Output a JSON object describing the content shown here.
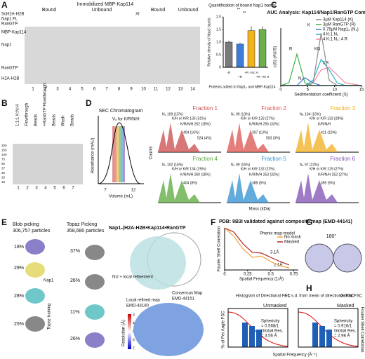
{
  "panels": {
    "A": {
      "label": "A",
      "title": "Immobilized MBP-Kap114",
      "groups": [
        "Bound",
        "Unbound",
        "Bound",
        "Unbound"
      ],
      "rows": [
        "ScH2A-H2B",
        "Nap1 FL",
        "RanGTP"
      ],
      "xi": "XI",
      "markers": [
        "MBP-Kap114",
        "Nap1",
        "RanGTP",
        "H2A-H2B"
      ],
      "lanes": [
        "1",
        "2",
        "3",
        "4",
        "5",
        "6",
        "7",
        "8",
        "9",
        "10",
        "11",
        "12",
        "13",
        "14"
      ],
      "chart": {
        "type": "bar",
        "title": "Quantification of bound Nap1 bands",
        "ylabel": "Relative density of Nap1 bands",
        "xlabel": "Proteins added to Nap1₂ and MBP-Kap114",
        "categories": [
          "-R",
          "+R",
          "+R +Sc H",
          "+R +XI H"
        ],
        "values": [
          1.0,
          0.92,
          1.45,
          1.5
        ],
        "errors": [
          0.06,
          0.06,
          0.18,
          0.12
        ],
        "colors": [
          "#7a7a7a",
          "#3b7dd8",
          "#f2b41e",
          "#6ab04c"
        ],
        "ylim": [
          0,
          2
        ],
        "yticks": [
          0,
          0.5,
          {
            "value": 1,
            "label": "1.0"
          },
          1.5,
          {
            "value": 2,
            "label": "2.0"
          }
        ],
        "significance": [
          "**",
          "**"
        ]
      }
    },
    "B": {
      "label": "B",
      "ratio": "1:1:1 K:N:H",
      "lanes_top": [
        "Flowthrough",
        "Beads",
        "+RanGTP Flowthrough",
        "Beads",
        "Wash",
        "Beads"
      ],
      "lanes": [
        "1",
        "2",
        "3",
        "4",
        "5",
        "6",
        "7"
      ],
      "markers": [
        "250",
        "150",
        "100",
        "75",
        "50",
        "37",
        "25",
        "20",
        "15"
      ]
    },
    "C": {
      "label": "C",
      "chart": {
        "type": "line",
        "title": "AUC Analysis: Kap114/Nap1/RanGTP Complex",
        "xlabel": "Sedimentation coefficient (S)",
        "ylabel": "c(S) (AU/S)",
        "x": [
          0,
          1.5,
          3,
          4.5,
          6,
          7.5,
          9,
          10.5,
          12,
          15
        ],
        "xlim": [
          0,
          15
        ],
        "ylim": [
          0,
          1.1
        ],
        "xticks": [
          0,
          5,
          10,
          15
        ],
        "series": [
          {
            "name": "3µM Kap114 (K)",
            "color": "#8c8c8c",
            "values": [
              0,
              0,
              0,
              0,
              0.05,
              1.0,
              0.1,
              0,
              0,
              0
            ]
          },
          {
            "name": "3µM RanGTP (R)",
            "color": "#3fae49",
            "values": [
              0,
              0.05,
              0.6,
              0.05,
              0,
              0,
              0,
              0,
              0,
              0
            ]
          },
          {
            "name": "0.75µM Nap1₂ (N₂)",
            "color": "#3d7fd6",
            "values": [
              0,
              0,
              0,
              0.15,
              0.05,
              0,
              0,
              0,
              0,
              0
            ]
          },
          {
            "name": "4 K:1 N₂",
            "color": "#2ab6c7",
            "values": [
              0,
              0,
              0,
              0,
              0.1,
              0.5,
              0.3,
              0.05,
              0,
              0
            ]
          },
          {
            "name": "4 K:1 N₂: 4 R",
            "color": "#f28b9c",
            "values": [
              0,
              0,
              0,
              0,
              0.05,
              0.3,
              0.35,
              0.2,
              0.05,
              0
            ]
          }
        ],
        "annotations": [
          "K",
          "R",
          "N₂",
          "KN",
          "KR"
        ]
      }
    },
    "D": {
      "label": "D",
      "sec_title": "SEC Chromatogram",
      "sec_note": "Vₒ for K/R/N/H",
      "sec_ylabel": "Absorbance (mAU)",
      "sec_xlabel": "Volume (mL)",
      "sec_xticks": [
        "7",
        "12"
      ],
      "fractions": [
        {
          "name": "Fraction 1",
          "color": "#c94a4a",
          "peaks": [
            "N₂ 109 (15%)",
            "K/H or K/R 135 (31%)",
            "K/R/N/H 262 (28%)",
            "404 (16%)",
            "524 (4%)"
          ]
        },
        {
          "name": "Fraction 2",
          "color": "#d9534f",
          "peaks": [
            "N₂ 99 (13%)",
            "K/H or K/R 132 (27%)",
            "K/R/N/H 256 (33%)",
            "397 (13%)",
            "503 (3%)"
          ]
        },
        {
          "name": "Fraction 3",
          "color": "#f0ad1e",
          "peaks": [
            "N₂ 104 (16%)",
            "K/H or K/R 133 (28%)",
            "K/R/N/H",
            "411 (10%)"
          ]
        },
        {
          "name": "Fraction 4",
          "color": "#5aa83c",
          "peaks": [
            "N₂ 102 (16%)",
            "K/H or K/R 134 (25%)",
            "K/R/N/H 260 (28%)",
            "404 (8%)"
          ]
        },
        {
          "name": "Fraction 5",
          "color": "#2f8fd0",
          "peaks": [
            "N₂ 99 (16%)",
            "K/H or K/R 132 (22%)",
            "K/R/N/H 253 (32%)",
            "388 (5%)"
          ]
        },
        {
          "name": "Fraction 6",
          "color": "#7e4fb0",
          "peaks": [
            "N₂ 97 (22%)",
            "K/H or K/R 129 (27%)",
            "K/R/N/H 252 (27%)",
            "395 (5%)"
          ]
        }
      ],
      "ylabel": "Counts",
      "xlabel": "Mass (kDa)"
    },
    "E": {
      "label": "E",
      "blob": "Blob picking",
      "blob_count": "306,757 particles",
      "topaz": "Topaz Picking",
      "topaz_count": "358,680 particles",
      "topaz_training": "Topaz training",
      "refine": "NU + local refinement",
      "left_pcts": [
        "18%",
        "29%",
        "28%",
        "25%"
      ],
      "right_pcts": [
        "37%",
        "26%",
        "11%",
        "26%"
      ],
      "nap1": "Nap1",
      "legend": "Nap1₂|H2A-H2B•Kap114•RanGTP",
      "local_map": "Local refined map",
      "local_emd": "EMD-44180",
      "consensus": "Consensus Map",
      "consensus_emd": "EMD-44151",
      "res_label": "Resolution (Å)",
      "res_ticks": [
        "3",
        "4",
        "5",
        "6",
        "7"
      ]
    },
    "F": {
      "label": "F",
      "title": "PDB: 9B3I validated against composite map (EMD-44141)",
      "subtitle": "Phenix map-model",
      "chart": {
        "type": "line",
        "xlabel": "Spatial Frequency (1/Å)",
        "ylabel": "Fourier Shell Correlation",
        "x": [
          0,
          0.1,
          0.2,
          0.3,
          0.4,
          0.5,
          0.6,
          0.7
        ],
        "xlim": [
          0,
          0.8
        ],
        "ylim": [
          0,
          1
        ],
        "xticks": [
          0,
          0.25,
          0.5,
          0.75
        ],
        "series": [
          {
            "name": "No mask",
            "color": "#f2a03d",
            "values": [
              1,
              0.8,
              0.5,
              0.3,
              0.33,
              0.2,
              0.1,
              0.05
            ]
          },
          {
            "name": "Masked",
            "color": "#b3241f",
            "values": [
              1,
              0.9,
              0.62,
              0.42,
              0.4,
              0.3,
              0.2,
              0.12
            ]
          }
        ],
        "annotations": [
          "3.1Å",
          "2.1Å"
        ]
      }
    },
    "G": {
      "label": "G",
      "rotation": "180°"
    },
    "H": {
      "label": "H",
      "legend": [
        "Histogram of Directional FSC",
        "± 1 s.d. from mean of directional FSC",
        "Global FSC"
      ],
      "left": "Unmasked",
      "left_stats": [
        "Sphericity",
        "= 0.568/1",
        "Global Res.",
        "= 3.56 Å"
      ],
      "right": "Masked",
      "right_stats": [
        "Sphericity",
        "= 0.916/1",
        "Global Res.",
        "= 2.98 Å"
      ],
      "ylabel": "% of Per Angle FSC",
      "y2label": "Fourier Shell Correlation",
      "xlabel": "Spatial Frequency (Å⁻¹)"
    }
  }
}
